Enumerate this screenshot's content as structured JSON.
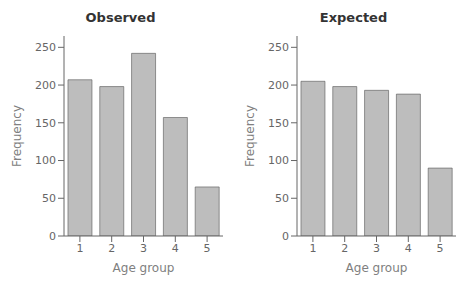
{
  "chart_data": [
    {
      "type": "bar",
      "title": "Observed",
      "xlabel": "Age group",
      "ylabel": "Frequency",
      "categories": [
        1,
        2,
        3,
        4,
        5
      ],
      "values": [
        207,
        198,
        242,
        157,
        65
      ],
      "color": "#bdbdbd",
      "ylim": [
        0,
        265
      ],
      "yticks": [
        0,
        50,
        100,
        150,
        200,
        250
      ]
    },
    {
      "type": "bar",
      "title": "Expected",
      "xlabel": "Age group",
      "ylabel": "Frequency",
      "categories": [
        1,
        2,
        3,
        4,
        5
      ],
      "values": [
        205,
        198,
        193,
        188,
        90
      ],
      "color": "#bdbdbd",
      "ylim": [
        0,
        265
      ],
      "yticks": [
        0,
        50,
        100,
        150,
        200,
        250
      ]
    }
  ]
}
